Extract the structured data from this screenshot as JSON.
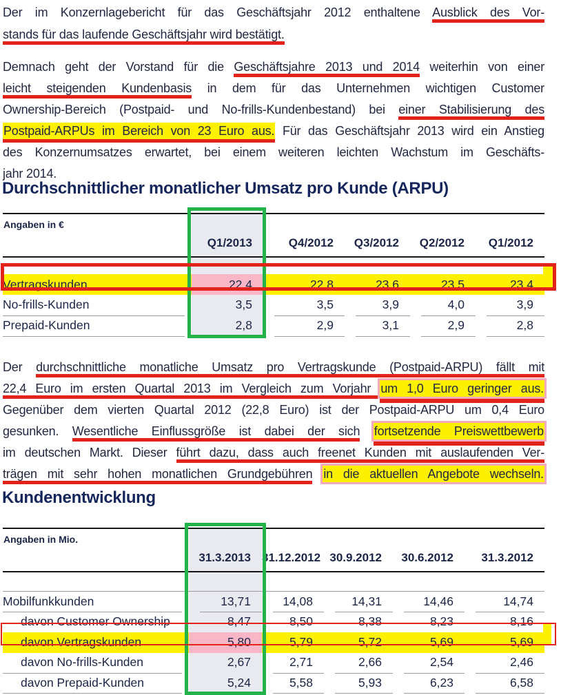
{
  "colors": {
    "annotation_red": "#e2231a",
    "highlight_yellow": "#fdf000",
    "highlight_pink_fill": "#f8b6c6",
    "highlight_pink_border": "#f5a9bd",
    "column_box_green": "#24b24b",
    "column_shade": "#e9e9f0",
    "heading_blue": "#15265c",
    "body_text": "#232842"
  },
  "paragraph1": {
    "lines": [
      {
        "justify": true,
        "segments": [
          {
            "text": "Der im Konzernlagebericht für das Geschäftsjahr 2012 enthaltene ",
            "style": "plain"
          },
          {
            "text": "Ausblick des Vor-",
            "style": "u"
          }
        ]
      },
      {
        "justify": false,
        "segments": [
          {
            "text": "stands für das laufende Geschäftsjahr wird bestätigt.",
            "style": "u"
          }
        ]
      }
    ]
  },
  "paragraph2": {
    "lines": [
      {
        "justify": true,
        "segments": [
          {
            "text": "Demnach geht der Vorstand für die ",
            "style": "plain"
          },
          {
            "text": "Geschäftsjahre 2013 und 2014",
            "style": "u"
          },
          {
            "text": " weiterhin von einer",
            "style": "plain"
          }
        ]
      },
      {
        "justify": true,
        "segments": [
          {
            "text": "leicht steigenden Kundenbasis",
            "style": "u"
          },
          {
            "text": " in dem für das Unternehmen wichtigen Customer",
            "style": "plain"
          }
        ]
      },
      {
        "justify": true,
        "segments": [
          {
            "text": "Ownership-Bereich (Postpaid- und No-frills-Kundenbestand) bei ",
            "style": "plain"
          },
          {
            "text": "einer Stabilisierung des",
            "style": "u"
          }
        ]
      },
      {
        "justify": true,
        "segments": [
          {
            "text": "Postpaid-ARPUs im Bereich von 23 Euro aus.",
            "style": "yu"
          },
          {
            "text": " Für das Geschäftsjahr 2013 wird ein Anstieg",
            "style": "plain"
          }
        ]
      },
      {
        "justify": true,
        "segments": [
          {
            "text": "des Konzernumsatzes erwartet, bei einem weiteren leichten Wachstum im Geschäfts-",
            "style": "plain"
          }
        ]
      },
      {
        "justify": false,
        "segments": [
          {
            "text": "jahr 2014.",
            "style": "plain"
          }
        ]
      }
    ]
  },
  "section_arpu": {
    "title": "Durchschnittlicher monatlicher Umsatz pro Kunde (ARPU)",
    "table": {
      "unit_label": "Angaben in €",
      "columns": [
        "Q1/2013",
        "Q4/2012",
        "Q3/2012",
        "Q2/2012",
        "Q1/2012"
      ],
      "column_box": {
        "column": "Q1/2013",
        "color": "green"
      },
      "rows": [
        {
          "label": "Vertragskunden",
          "sub": false,
          "highlighted": true,
          "box": "thick-red",
          "first_cell_fill": "pink",
          "values": [
            "22,4",
            "22,8",
            "23,6",
            "23,5",
            "23,4"
          ]
        },
        {
          "label": "No-frills-Kunden",
          "sub": false,
          "highlighted": false,
          "values": [
            "3,5",
            "3,5",
            "3,9",
            "4,0",
            "3,9"
          ]
        },
        {
          "label": "Prepaid-Kunden",
          "sub": false,
          "highlighted": false,
          "values": [
            "2,8",
            "2,9",
            "3,1",
            "2,9",
            "2,8"
          ]
        }
      ]
    }
  },
  "paragraph3": {
    "lines": [
      {
        "justify": true,
        "segments": [
          {
            "text": "Der ",
            "style": "plain"
          },
          {
            "text": "durchschnittliche monatliche Umsatz pro Vertragskunde (Postpaid-ARPU) fällt mit",
            "style": "u"
          }
        ]
      },
      {
        "justify": true,
        "segments": [
          {
            "text": "22,4 Euro im ersten Quartal 2013 im Vergleich zum Vorjahr ",
            "style": "u"
          },
          {
            "text": "um 1,0 Euro geringer aus.",
            "style": "ypu"
          }
        ]
      },
      {
        "justify": true,
        "segments": [
          {
            "text": "Gegenüber dem vierten Quartal 2012 (22,8 Euro) ist der Postpaid-ARPU um 0,4 Euro",
            "style": "plain"
          }
        ]
      },
      {
        "justify": true,
        "segments": [
          {
            "text": "gesunken. ",
            "style": "plain"
          },
          {
            "text": "Wesentliche Einflussgröße ist dabei der sich",
            "style": "u"
          },
          {
            "text": " ",
            "style": "plain"
          },
          {
            "text": "fortsetzende Preiswettbewerb",
            "style": "ypu"
          }
        ]
      },
      {
        "justify": true,
        "segments": [
          {
            "text": "im deutschen Markt. Dieser ",
            "style": "plain"
          },
          {
            "text": "führt dazu, dass auch freenet Kunden mit auslaufenden Ver-",
            "style": "u"
          }
        ]
      },
      {
        "justify": true,
        "segments": [
          {
            "text": "trägen mit sehr hohen monatlichen Grundgebühren",
            "style": "u"
          },
          {
            "text": " ",
            "style": "plain"
          },
          {
            "text": "in die aktuellen Angebote wechseln.",
            "style": "yp"
          }
        ]
      }
    ]
  },
  "section_kunden": {
    "title": "Kundenentwicklung",
    "table": {
      "unit_label": "Angaben in Mio.",
      "columns": [
        "31.3.2013",
        "31.12.2012",
        "30.9.2012",
        "30.6.2012",
        "31.3.2012"
      ],
      "column_box": {
        "column": "31.3.2013",
        "color": "green"
      },
      "rows": [
        {
          "label": "Mobilfunkkunden",
          "sub": false,
          "highlighted": false,
          "values": [
            "13,71",
            "14,08",
            "14,31",
            "14,46",
            "14,74"
          ]
        },
        {
          "label": "davon Customer Ownership",
          "sub": true,
          "highlighted": false,
          "values": [
            "8,47",
            "8,50",
            "8,38",
            "8,23",
            "8,16"
          ]
        },
        {
          "label": "davon Vertragskunden",
          "sub": true,
          "highlighted": true,
          "box": "thin-red",
          "first_cell_fill": "pink",
          "values": [
            "5,80",
            "5,79",
            "5,72",
            "5,69",
            "5,69"
          ]
        },
        {
          "label": "davon No-frills-Kunden",
          "sub": true,
          "highlighted": false,
          "values": [
            "2,67",
            "2,71",
            "2,66",
            "2,54",
            "2,46"
          ]
        },
        {
          "label": "davon Prepaid-Kunden",
          "sub": true,
          "highlighted": false,
          "values": [
            "5,24",
            "5,58",
            "5,93",
            "6,23",
            "6,58"
          ]
        }
      ]
    }
  }
}
